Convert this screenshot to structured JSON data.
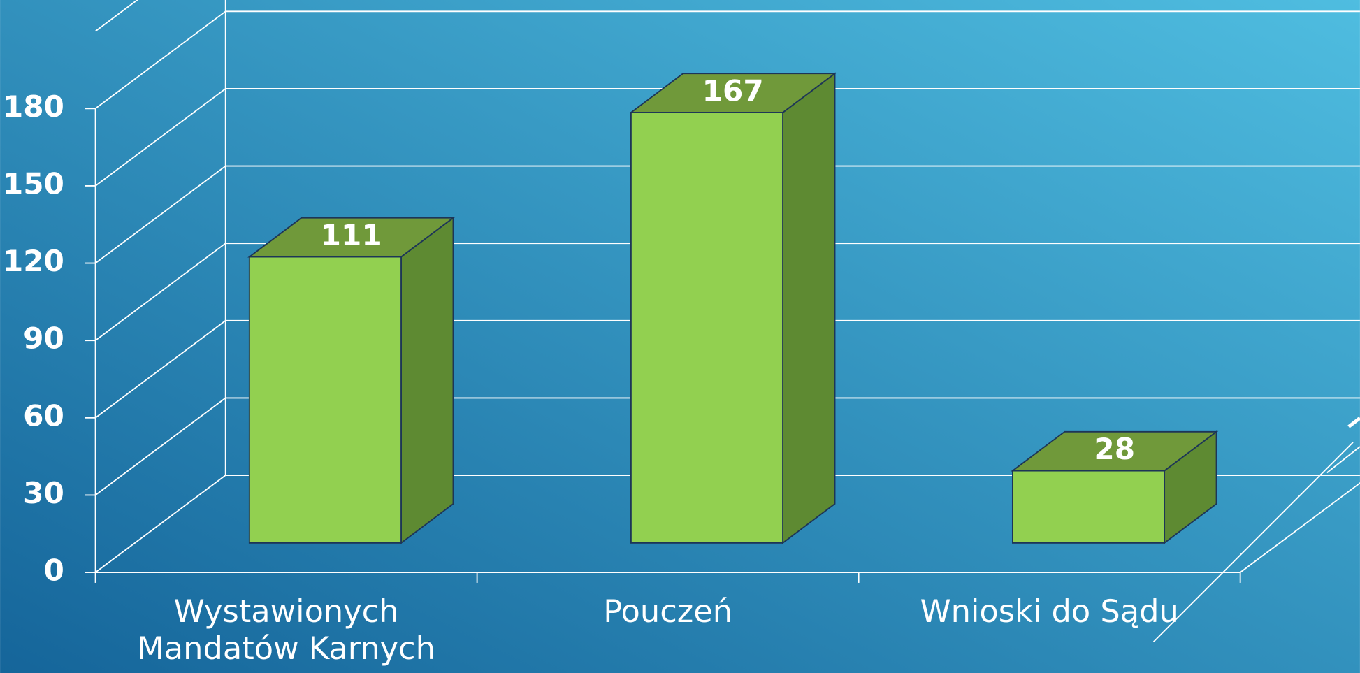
{
  "chart_data": {
    "type": "bar3d",
    "categories": [
      "Wystawionych Mandatów Karnych",
      "Pouczeń",
      "Wnioski do Sądu"
    ],
    "values": [
      111,
      167,
      28
    ],
    "color": "#92d050",
    "ylim": [
      0,
      210
    ],
    "yticks": [
      0,
      30,
      60,
      90,
      120,
      150,
      180
    ],
    "grid": true
  }
}
